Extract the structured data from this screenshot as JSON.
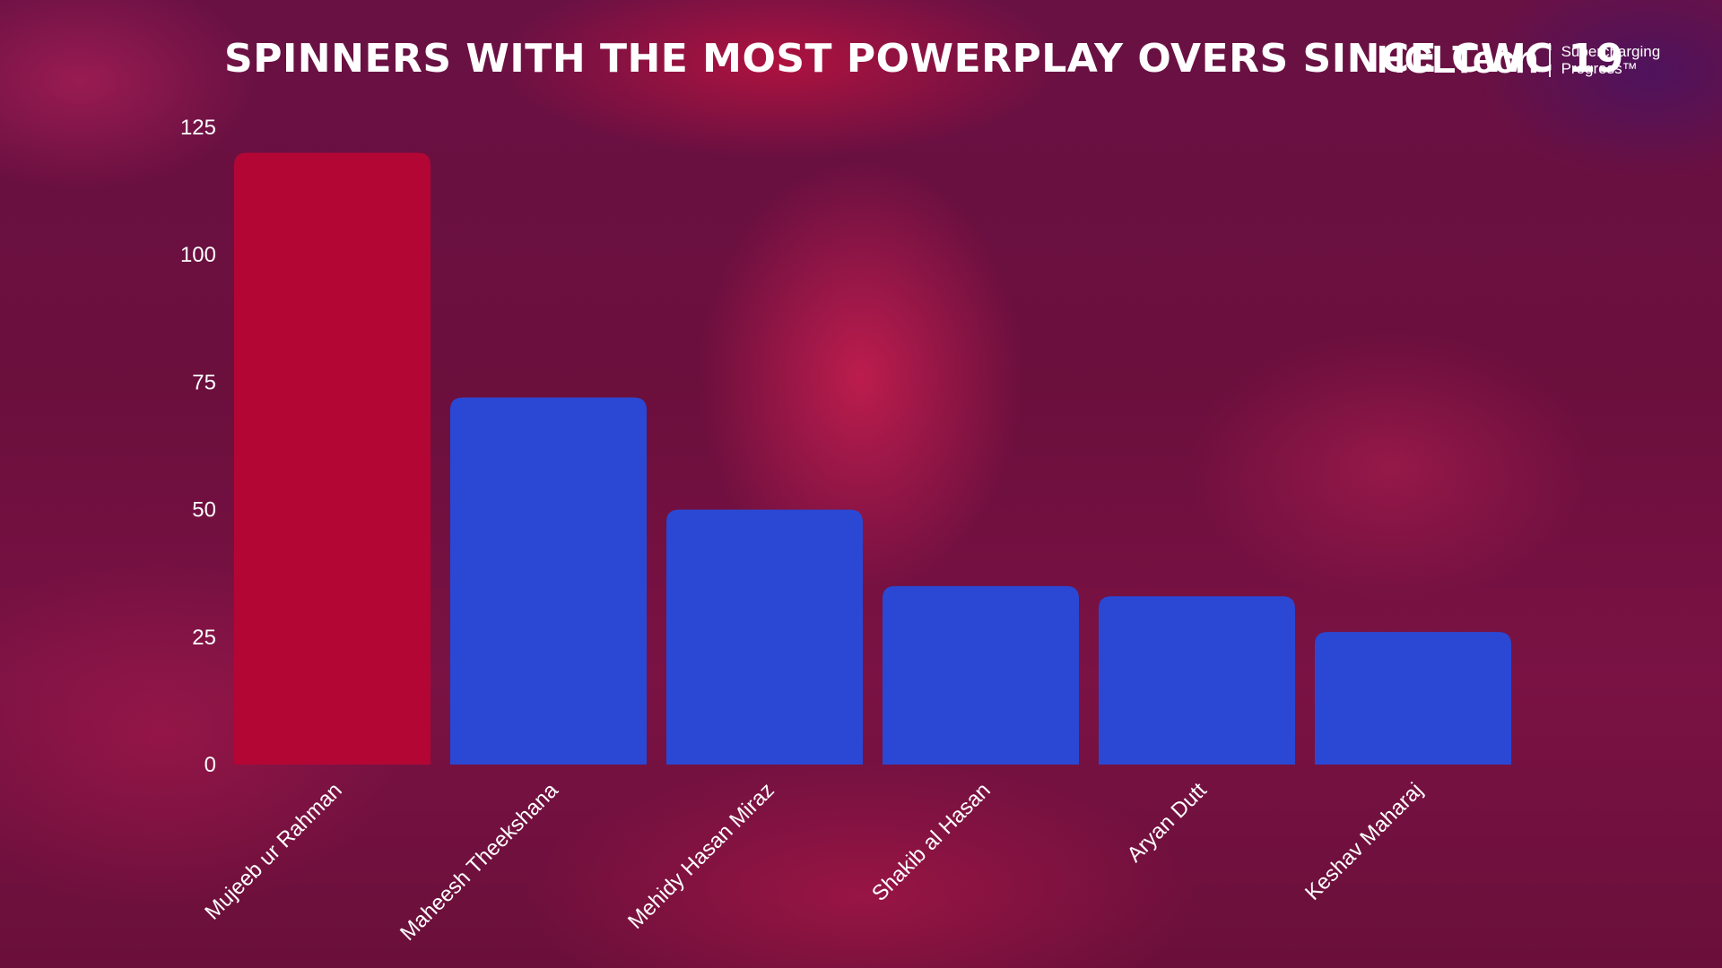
{
  "title": "Spinners with the most powerplay overs since CWC 19",
  "logo": {
    "wordmark": "HCLTech",
    "tagline_line1": "Supercharging",
    "tagline_line2": "Progress™"
  },
  "colors": {
    "highlight_bar": "#b40634",
    "bar": "#2a48d4",
    "text": "#ffffff"
  },
  "chart_data": {
    "type": "bar",
    "title": "Spinners with the most powerplay overs since CWC 19",
    "xlabel": "",
    "ylabel": "",
    "categories": [
      "Mujeeb ur Rahman",
      "Maheesh Theekshana",
      "Mehidy Hasan Miraz",
      "Shakib al Hasan",
      "Aryan Dutt",
      "Keshav Maharaj"
    ],
    "values": [
      120,
      72,
      50,
      35,
      33,
      26
    ],
    "highlight_index": 0,
    "ylim": [
      0,
      125
    ],
    "yticks": [
      0,
      25,
      50,
      75,
      100,
      125
    ],
    "ytick_labels": [
      "0",
      "25",
      "50",
      "75",
      "100",
      "125"
    ],
    "grid": false,
    "legend": "none"
  }
}
